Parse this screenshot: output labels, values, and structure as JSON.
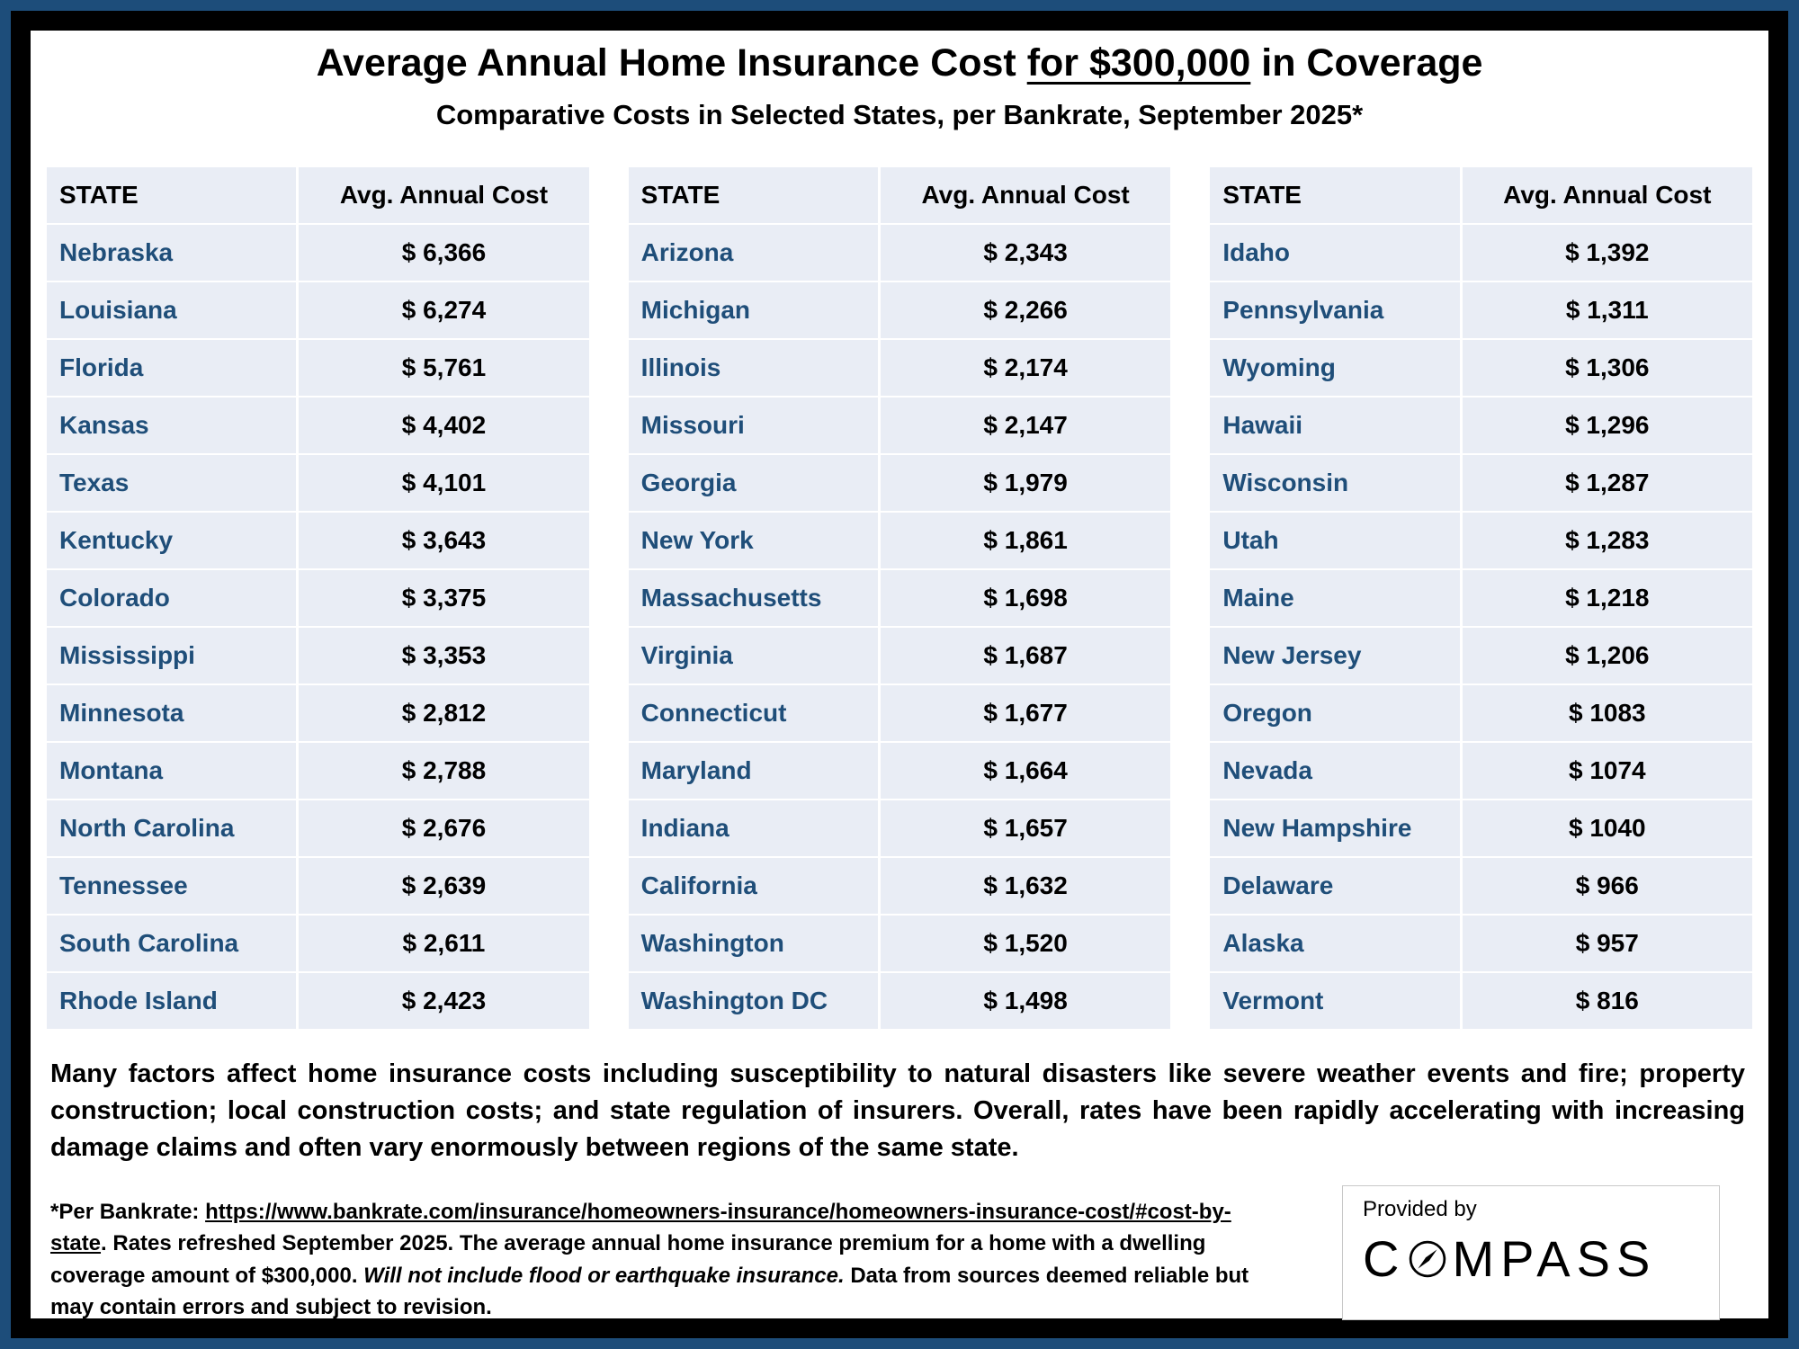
{
  "title": {
    "prefix": "Average Annual Home Insurance Cost ",
    "underlined": "for $300,000",
    "suffix": " in Coverage",
    "subtitle": "Comparative Costs in Selected States, per Bankrate, September 2025*"
  },
  "table_header": {
    "state": "STATE",
    "cost": "Avg. Annual Cost"
  },
  "tables": [
    {
      "rows": [
        {
          "state": "Nebraska",
          "cost": "$ 6,366"
        },
        {
          "state": "Louisiana",
          "cost": "$ 6,274"
        },
        {
          "state": "Florida",
          "cost": "$ 5,761"
        },
        {
          "state": "Kansas",
          "cost": "$ 4,402"
        },
        {
          "state": "Texas",
          "cost": "$ 4,101"
        },
        {
          "state": "Kentucky",
          "cost": "$ 3,643"
        },
        {
          "state": "Colorado",
          "cost": "$ 3,375"
        },
        {
          "state": "Mississippi",
          "cost": "$ 3,353"
        },
        {
          "state": "Minnesota",
          "cost": "$ 2,812"
        },
        {
          "state": "Montana",
          "cost": "$ 2,788"
        },
        {
          "state": "North Carolina",
          "cost": "$ 2,676"
        },
        {
          "state": "Tennessee",
          "cost": "$ 2,639"
        },
        {
          "state": "South Carolina",
          "cost": "$ 2,611"
        },
        {
          "state": "Rhode Island",
          "cost": "$ 2,423"
        }
      ]
    },
    {
      "rows": [
        {
          "state": "Arizona",
          "cost": "$ 2,343"
        },
        {
          "state": "Michigan",
          "cost": "$ 2,266"
        },
        {
          "state": "Illinois",
          "cost": "$ 2,174"
        },
        {
          "state": "Missouri",
          "cost": "$ 2,147"
        },
        {
          "state": "Georgia",
          "cost": "$ 1,979"
        },
        {
          "state": "New York",
          "cost": "$ 1,861"
        },
        {
          "state": "Massachusetts",
          "cost": "$ 1,698"
        },
        {
          "state": "Virginia",
          "cost": "$ 1,687"
        },
        {
          "state": "Connecticut",
          "cost": "$ 1,677"
        },
        {
          "state": "Maryland",
          "cost": "$ 1,664"
        },
        {
          "state": "Indiana",
          "cost": "$ 1,657"
        },
        {
          "state": "California",
          "cost": "$ 1,632"
        },
        {
          "state": "Washington",
          "cost": "$ 1,520"
        },
        {
          "state": "Washington DC",
          "cost": "$ 1,498"
        }
      ]
    },
    {
      "rows": [
        {
          "state": "Idaho",
          "cost": "$ 1,392"
        },
        {
          "state": "Pennsylvania",
          "cost": "$ 1,311"
        },
        {
          "state": "Wyoming",
          "cost": "$ 1,306"
        },
        {
          "state": "Hawaii",
          "cost": "$ 1,296"
        },
        {
          "state": "Wisconsin",
          "cost": "$ 1,287"
        },
        {
          "state": "Utah",
          "cost": "$ 1,283"
        },
        {
          "state": "Maine",
          "cost": "$ 1,218"
        },
        {
          "state": "New Jersey",
          "cost": "$ 1,206"
        },
        {
          "state": "Oregon",
          "cost": "$ 1083"
        },
        {
          "state": "Nevada",
          "cost": "$ 1074"
        },
        {
          "state": "New Hampshire",
          "cost": "$ 1040"
        },
        {
          "state": "Delaware",
          "cost": "$ 966"
        },
        {
          "state": "Alaska",
          "cost": "$ 957"
        },
        {
          "state": "Vermont",
          "cost": "$ 816"
        }
      ]
    }
  ],
  "paragraph": "Many factors affect home insurance costs including susceptibility to natural disasters like severe weather events and fire; property construction; local construction costs; and state regulation of insurers. Overall, rates have been rapidly accelerating with increasing damage claims and often vary enormously between regions of the same state.",
  "footnote": {
    "label": "*Per Bankrate: ",
    "link": "https://www.bankrate.com/insurance/homeowners-insurance/homeowners-insurance-cost/#cost-by-state",
    "after_link": ". Rates refreshed September 2025. The average annual home insurance premium for a home with a dwelling coverage amount of $300,000. ",
    "italic": "Will not include flood or earthquake insurance.",
    "end": " Data from sources deemed reliable but may contain errors and subject to revision."
  },
  "logo": {
    "provided_by": "Provided by",
    "brand_left": "C",
    "brand_right": "MPASS"
  },
  "colors": {
    "outer_border": "#1d4d7a",
    "inner_frame": "#000000",
    "table_bg": "#e9edf5",
    "state_text": "#1f4e79",
    "cost_text": "#000000"
  },
  "chart_data": {
    "type": "table",
    "title": "Average Annual Home Insurance Cost for $300,000 in Coverage",
    "subtitle": "Comparative Costs in Selected States, per Bankrate, September 2025*",
    "columns": [
      "State",
      "Avg. Annual Cost (USD)"
    ],
    "rows": [
      [
        "Nebraska",
        6366
      ],
      [
        "Louisiana",
        6274
      ],
      [
        "Florida",
        5761
      ],
      [
        "Kansas",
        4402
      ],
      [
        "Texas",
        4101
      ],
      [
        "Kentucky",
        3643
      ],
      [
        "Colorado",
        3375
      ],
      [
        "Mississippi",
        3353
      ],
      [
        "Minnesota",
        2812
      ],
      [
        "Montana",
        2788
      ],
      [
        "North Carolina",
        2676
      ],
      [
        "Tennessee",
        2639
      ],
      [
        "South Carolina",
        2611
      ],
      [
        "Rhode Island",
        2423
      ],
      [
        "Arizona",
        2343
      ],
      [
        "Michigan",
        2266
      ],
      [
        "Illinois",
        2174
      ],
      [
        "Missouri",
        2147
      ],
      [
        "Georgia",
        1979
      ],
      [
        "New York",
        1861
      ],
      [
        "Massachusetts",
        1698
      ],
      [
        "Virginia",
        1687
      ],
      [
        "Connecticut",
        1677
      ],
      [
        "Maryland",
        1664
      ],
      [
        "Indiana",
        1657
      ],
      [
        "California",
        1632
      ],
      [
        "Washington",
        1520
      ],
      [
        "Washington DC",
        1498
      ],
      [
        "Idaho",
        1392
      ],
      [
        "Pennsylvania",
        1311
      ],
      [
        "Wyoming",
        1306
      ],
      [
        "Hawaii",
        1296
      ],
      [
        "Wisconsin",
        1287
      ],
      [
        "Utah",
        1283
      ],
      [
        "Maine",
        1218
      ],
      [
        "New Jersey",
        1206
      ],
      [
        "Oregon",
        1083
      ],
      [
        "Nevada",
        1074
      ],
      [
        "New Hampshire",
        1040
      ],
      [
        "Delaware",
        966
      ],
      [
        "Alaska",
        957
      ],
      [
        "Vermont",
        816
      ]
    ]
  }
}
